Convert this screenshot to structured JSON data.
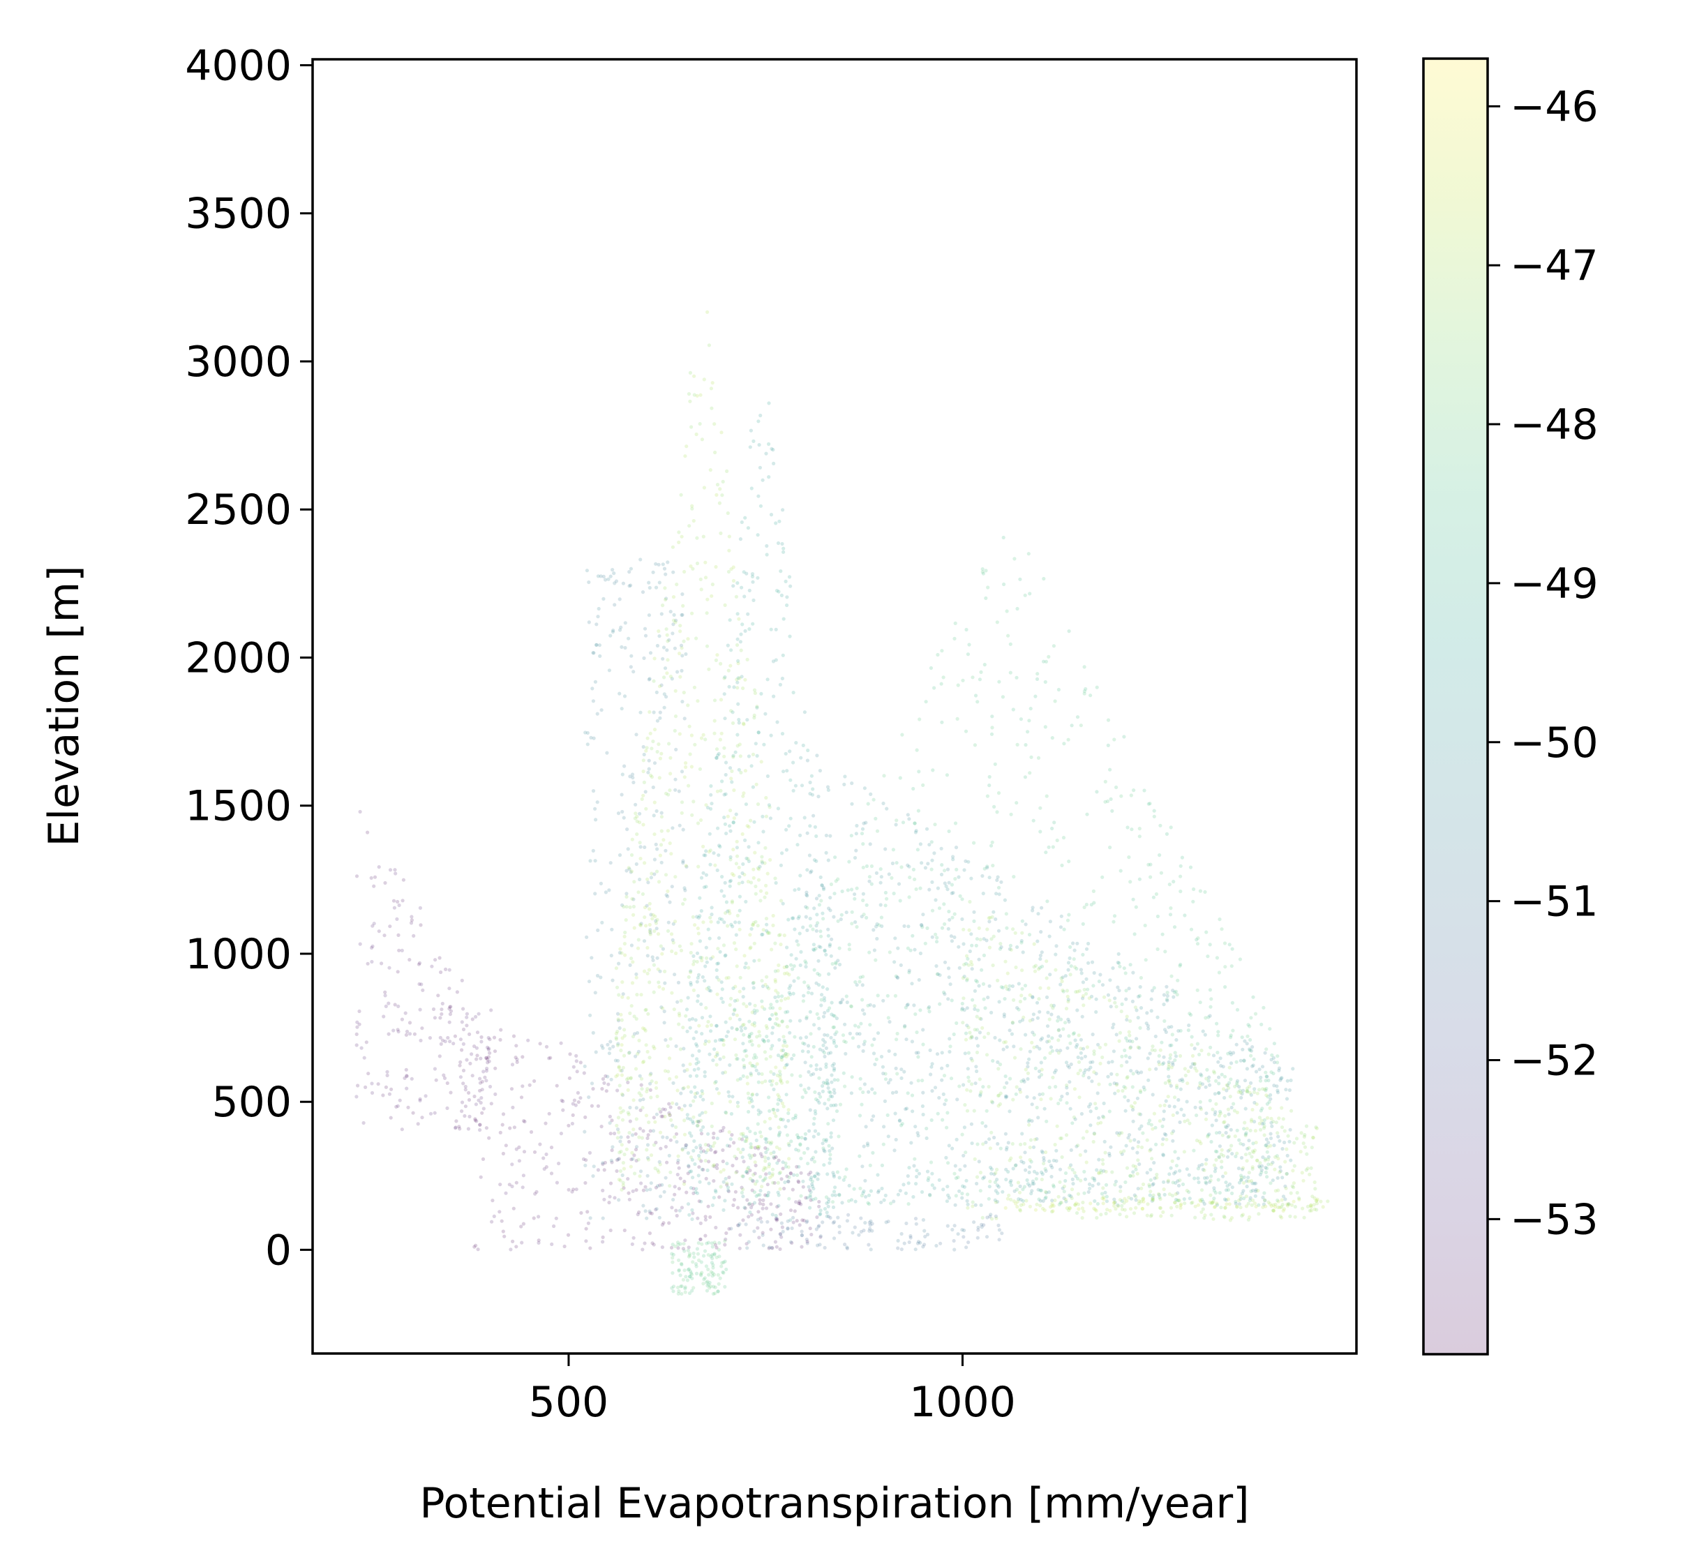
{
  "chart_data": {
    "type": "scatter",
    "title": "",
    "xlabel": "Potential Evapotranspiration [mm/year]",
    "ylabel": "Elevation [m]",
    "xlim": [
      175,
      1500
    ],
    "ylim": [
      -350,
      4020
    ],
    "x_ticks": [
      500,
      1000
    ],
    "x_tick_labels": [
      "500",
      "1000"
    ],
    "y_ticks": [
      0,
      500,
      1000,
      1500,
      2000,
      2500,
      3000,
      3500,
      4000
    ],
    "y_tick_labels": [
      "0",
      "500",
      "1000",
      "1500",
      "2000",
      "2500",
      "3000",
      "3500",
      "4000"
    ],
    "grid": false,
    "legend": "none",
    "marker_alpha": 0.2,
    "colormap": "viridis",
    "colorbar": {
      "vmin": -53.85,
      "vmax": -45.7,
      "ticks": [
        -53,
        -52,
        -51,
        -50,
        -49,
        -48,
        -47,
        -46
      ],
      "tick_labels": [
        "−53",
        "−52",
        "−51",
        "−50",
        "−49",
        "−48",
        "−47",
        "−46"
      ]
    },
    "point_clusters": [
      {
        "x_min": 230,
        "x_max": 400,
        "y_min": 400,
        "y_max": 1550,
        "color_value": -53.5,
        "shape": "descending strip"
      },
      {
        "x_min": 380,
        "x_max": 820,
        "y_min": 0,
        "y_max": 850,
        "color_value": -53.6,
        "shape": "dense low block"
      },
      {
        "x_min": 520,
        "x_max": 650,
        "y_min": 100,
        "y_max": 2350,
        "color_value": -50.6,
        "shape": "tall column"
      },
      {
        "x_min": 560,
        "x_max": 780,
        "y_min": 200,
        "y_max": 3300,
        "color_value": -47.1,
        "shape": "rising peak"
      },
      {
        "x_min": 650,
        "x_max": 840,
        "y_min": 100,
        "y_max": 3150,
        "color_value": -49.6,
        "shape": "peak"
      },
      {
        "x_min": 720,
        "x_max": 1400,
        "y_min": 150,
        "y_max": 2500,
        "color_value": -48.4,
        "shape": "broad mass"
      },
      {
        "x_min": 800,
        "x_max": 1420,
        "y_min": 150,
        "y_max": 1700,
        "color_value": -50.2,
        "shape": "descending band"
      },
      {
        "x_min": 1000,
        "x_max": 1450,
        "y_min": 100,
        "y_max": 1200,
        "color_value": -47.2,
        "shape": "right edge"
      },
      {
        "x_min": 800,
        "x_max": 1380,
        "y_min": 160,
        "y_max": 280,
        "color_value": -49.6,
        "shape": "flat band"
      },
      {
        "x_min": 1050,
        "x_max": 1480,
        "y_min": 130,
        "y_max": 175,
        "color_value": -46.8,
        "shape": "flat band"
      },
      {
        "x_min": 700,
        "x_max": 1050,
        "y_min": 0,
        "y_max": 120,
        "color_value": -51.2,
        "shape": "flat band"
      },
      {
        "x_min": 630,
        "x_max": 700,
        "y_min": -150,
        "y_max": 30,
        "color_value": -48.2,
        "shape": "negative dip"
      }
    ]
  }
}
